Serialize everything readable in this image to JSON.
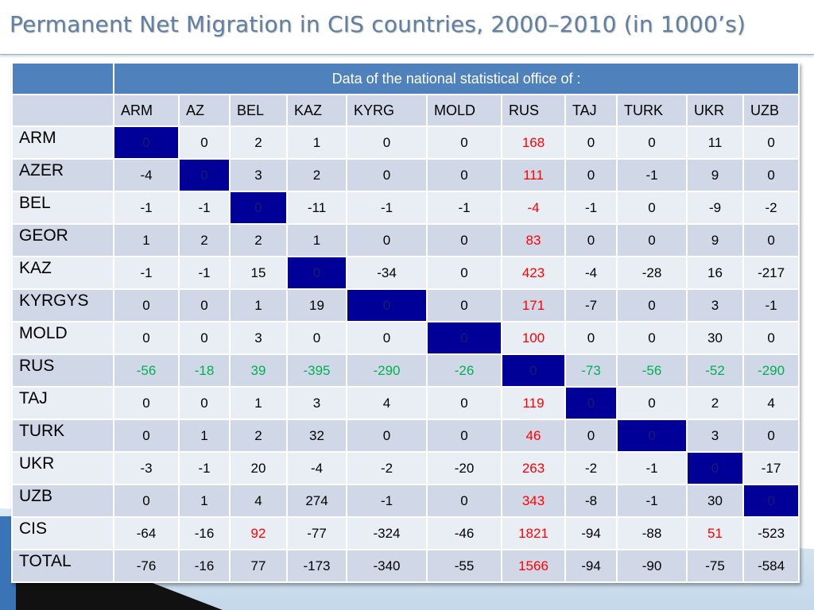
{
  "slide": {
    "title": "Permanent Net Migration in CIS countries, 2000–2010 (in 1000’s)"
  },
  "table": {
    "header_label": "Data of the  national statistical office of :",
    "columns": [
      "ARM",
      "AZ",
      "BEL",
      "KAZ",
      "KYRG",
      "MOLD",
      "RUS",
      "TAJ",
      "TURK",
      "UKR",
      "UZB"
    ],
    "rows": [
      {
        "label": "ARM",
        "values": [
          "0",
          "0",
          "2",
          "1",
          "0",
          "0",
          "168",
          "0",
          "0",
          "11",
          "0"
        ],
        "diag": 0
      },
      {
        "label": "AZER",
        "values": [
          "-4",
          "0",
          "3",
          "2",
          "0",
          "0",
          "111",
          "0",
          "-1",
          "9",
          "0"
        ],
        "diag": 1
      },
      {
        "label": "BEL",
        "values": [
          "-1",
          "-1",
          "0",
          "-11",
          "-1",
          "-1",
          "-4",
          "-1",
          "0",
          "-9",
          "-2"
        ],
        "diag": 2
      },
      {
        "label": "GEOR",
        "values": [
          "1",
          "2",
          "2",
          "1",
          "0",
          "0",
          "83",
          "0",
          "0",
          "9",
          "0"
        ],
        "diag": -1
      },
      {
        "label": "KAZ",
        "values": [
          "-1",
          "-1",
          "15",
          "0",
          "-34",
          "0",
          "423",
          "-4",
          "-28",
          "16",
          "-217"
        ],
        "diag": 3
      },
      {
        "label": "KYRGYS",
        "values": [
          "0",
          "0",
          "1",
          "19",
          "0",
          "0",
          "171",
          "-7",
          "0",
          "3",
          "-1"
        ],
        "diag": 4
      },
      {
        "label": "MOLD",
        "values": [
          "0",
          "0",
          "3",
          "0",
          "0",
          "0",
          "100",
          "0",
          "0",
          "30",
          "0"
        ],
        "diag": 5
      },
      {
        "label": "RUS",
        "values": [
          "-56",
          "-18",
          "39",
          "-395",
          "-290",
          "-26",
          "0",
          "-73",
          "-56",
          "-52",
          "-290"
        ],
        "diag": 6
      },
      {
        "label": "TAJ",
        "values": [
          "0",
          "0",
          "1",
          "3",
          "4",
          "0",
          "119",
          "0",
          "0",
          "2",
          "4"
        ],
        "diag": 7
      },
      {
        "label": "TURK",
        "values": [
          "0",
          "1",
          "2",
          "32",
          "0",
          "0",
          "46",
          "0",
          "0",
          "3",
          "0"
        ],
        "diag": 8
      },
      {
        "label": "UKR",
        "values": [
          "-3",
          "-1",
          "20",
          "-4",
          "-2",
          "-20",
          "263",
          "-2",
          "-1",
          "0",
          "-17"
        ],
        "diag": 9
      },
      {
        "label": "UZB",
        "values": [
          "0",
          "1",
          "4",
          "274",
          "-1",
          "0",
          "343",
          "-8",
          "-1",
          "30",
          "0"
        ],
        "diag": 10
      },
      {
        "label": "CIS",
        "values": [
          "-64",
          "-16",
          "92",
          "-77",
          "-324",
          "-46",
          "1821",
          "-94",
          "-88",
          "51",
          "-523"
        ],
        "diag": -1
      },
      {
        "label": "TOTAL",
        "values": [
          "-76",
          "-16",
          "77",
          "-173",
          "-340",
          "-55",
          "1566",
          "-94",
          "-90",
          "-75",
          "-584"
        ],
        "diag": -1
      }
    ]
  },
  "colors": {
    "header_blue": "#4f81bd",
    "diagonal": "#000099",
    "highlight_red": "#ff0000",
    "highlight_green": "#00b050"
  }
}
